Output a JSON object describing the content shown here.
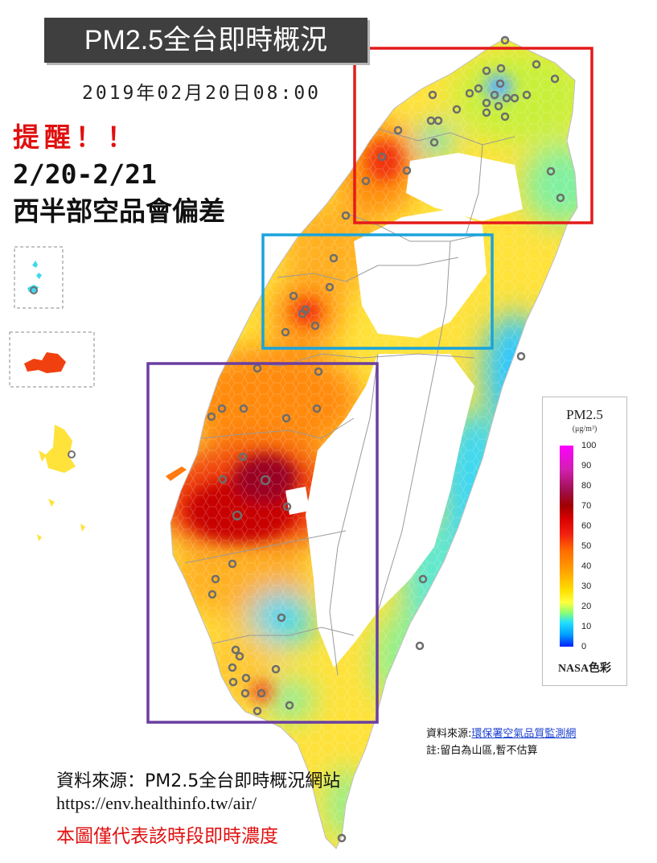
{
  "title": "PM2.5全台即時概況",
  "timestamp": "2019年02月20日08:00",
  "alert": {
    "heading": "提醒！！",
    "dates": "2/20-2/21",
    "message": "西半部空品會偏差"
  },
  "legend": {
    "title": "PM2.5",
    "unit": "(μg/m³)",
    "ticks": [
      "100",
      "90",
      "80",
      "70",
      "60",
      "50",
      "40",
      "30",
      "20",
      "10",
      "0"
    ],
    "color_scheme": "NASA色彩",
    "colors": [
      "#0020ff",
      "#22e0ff",
      "#ffff40",
      "#ffa000",
      "#f22010",
      "#a00000",
      "#ff00ff"
    ]
  },
  "source_small": {
    "label": "資料來源:",
    "link": "環保署空氣品質監測網",
    "note": "註:留白為山區,暫不估算"
  },
  "source_main": "資料來源：PM2.5全台即時概況網站",
  "source_url": "https://env.healthinfo.tw/air/",
  "disclaimer": "本圖僅代表該時段即時濃度",
  "highlight_boxes": [
    {
      "region": "north",
      "color": "#e31b1b"
    },
    {
      "region": "central",
      "color": "#1aa3db"
    },
    {
      "region": "south-west",
      "color": "#6a3ea1"
    }
  ]
}
